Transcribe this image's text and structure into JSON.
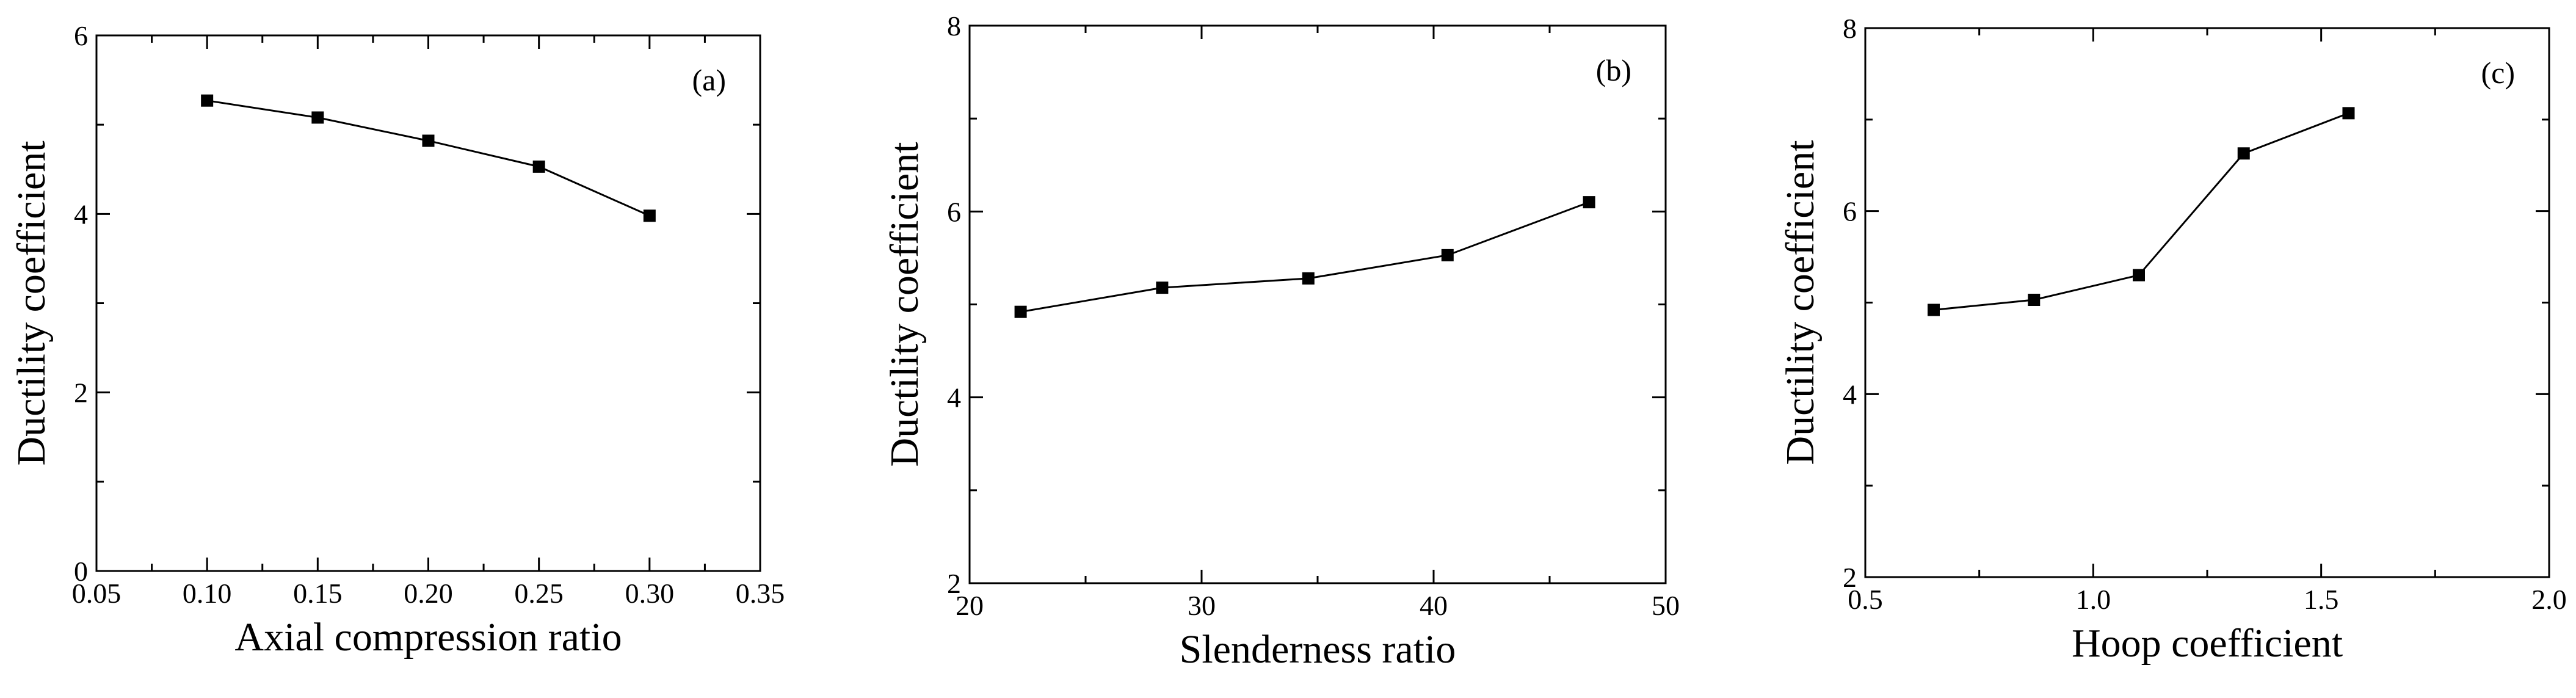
{
  "chart_data": [
    {
      "type": "line",
      "panel_label": "(a)",
      "xlabel": "Axial compression ratio",
      "ylabel": "Ductility coefficient",
      "xlim": [
        0.05,
        0.35
      ],
      "ylim": [
        0,
        6
      ],
      "x_ticks": [
        "0.05",
        "0.10",
        "0.15",
        "0.20",
        "0.25",
        "0.30",
        "0.35"
      ],
      "y_ticks": [
        "0",
        "2",
        "4",
        "6"
      ],
      "grid": false,
      "series": [
        {
          "x": [
            0.1,
            0.15,
            0.2,
            0.25,
            0.3
          ],
          "values": [
            5.27,
            5.08,
            4.82,
            4.53,
            3.98
          ]
        }
      ]
    },
    {
      "type": "line",
      "panel_label": "(b)",
      "xlabel": "Slenderness ratio",
      "ylabel": "Ductility coefficient",
      "xlim": [
        20,
        50
      ],
      "ylim": [
        2,
        8
      ],
      "x_ticks": [
        "20",
        "30",
        "40",
        "50"
      ],
      "y_ticks": [
        "2",
        "4",
        "6",
        "8"
      ],
      "grid": false,
      "series": [
        {
          "x": [
            22.2,
            28.3,
            34.6,
            40.6,
            46.7
          ],
          "values": [
            4.92,
            5.18,
            5.28,
            5.53,
            6.1
          ]
        }
      ]
    },
    {
      "type": "line",
      "panel_label": "(c)",
      "xlabel": "Hoop coefficient",
      "ylabel": "Ductility coefficient",
      "xlim": [
        0.5,
        2.0
      ],
      "ylim": [
        2,
        8
      ],
      "x_ticks": [
        "0.5",
        "1.0",
        "1.5",
        "2.0"
      ],
      "y_ticks": [
        "2",
        "4",
        "6",
        "8"
      ],
      "grid": false,
      "series": [
        {
          "x": [
            0.65,
            0.87,
            1.1,
            1.33,
            1.56
          ],
          "values": [
            4.92,
            5.03,
            5.3,
            6.63,
            7.07
          ]
        }
      ]
    }
  ]
}
